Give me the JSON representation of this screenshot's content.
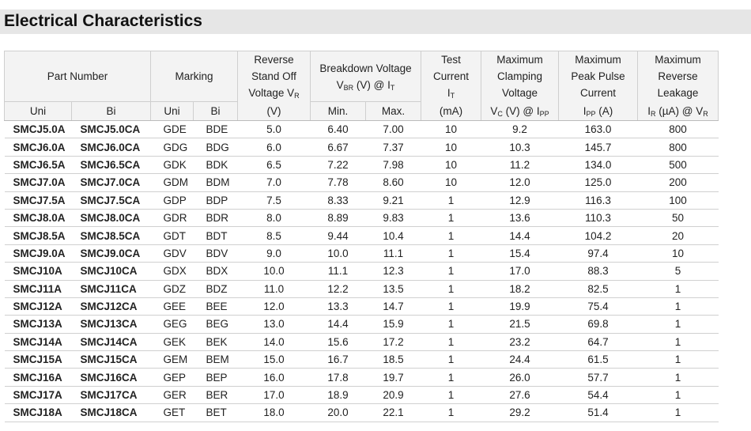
{
  "title": "Electrical Characteristics",
  "table": {
    "header": [
      {
        "lines": [
          [
            "Part Number"
          ]
        ]
      },
      {
        "lines": [
          [
            "Marking"
          ]
        ]
      },
      {
        "lines": [
          [
            "Reverse"
          ],
          [
            "Stand Off"
          ],
          [
            "Voltage V",
            {
              "sub": "R"
            }
          ]
        ]
      },
      {
        "lines": [
          [
            "Breakdown Voltage"
          ],
          [
            "V",
            {
              "sub": "BR"
            },
            " (V) @ I",
            {
              "sub": "T"
            }
          ]
        ]
      },
      {
        "lines": [
          [
            "Test"
          ],
          [
            "Current"
          ],
          [
            "I",
            {
              "sub": "T"
            }
          ]
        ]
      },
      {
        "lines": [
          [
            "Maximum"
          ],
          [
            "Clamping"
          ],
          [
            "Voltage"
          ]
        ]
      },
      {
        "lines": [
          [
            "Maximum"
          ],
          [
            "Peak Pulse"
          ],
          [
            "Current"
          ]
        ]
      },
      {
        "lines": [
          [
            "Maximum"
          ],
          [
            "Reverse"
          ],
          [
            "Leakage"
          ]
        ]
      }
    ],
    "subheader": [
      [
        "Uni"
      ],
      [
        "Bi"
      ],
      [
        "Uni"
      ],
      [
        "Bi"
      ],
      [
        "(V)"
      ],
      [
        "Min."
      ],
      [
        "Max."
      ],
      [
        "(mA)"
      ],
      [
        "V",
        {
          "sub": "C"
        },
        " (V) @ I",
        {
          "sub": "PP"
        }
      ],
      [
        "I",
        {
          "sub": "PP"
        },
        " (A)"
      ],
      [
        "I",
        {
          "sub": "R"
        },
        " (µA) @ V",
        {
          "sub": "R"
        }
      ]
    ],
    "rows": [
      [
        "SMCJ5.0A",
        "SMCJ5.0CA",
        "GDE",
        "BDE",
        "5.0",
        "6.40",
        "7.00",
        "10",
        "9.2",
        "163.0",
        "800"
      ],
      [
        "SMCJ6.0A",
        "SMCJ6.0CA",
        "GDG",
        "BDG",
        "6.0",
        "6.67",
        "7.37",
        "10",
        "10.3",
        "145.7",
        "800"
      ],
      [
        "SMCJ6.5A",
        "SMCJ6.5CA",
        "GDK",
        "BDK",
        "6.5",
        "7.22",
        "7.98",
        "10",
        "11.2",
        "134.0",
        "500"
      ],
      [
        "SMCJ7.0A",
        "SMCJ7.0CA",
        "GDM",
        "BDM",
        "7.0",
        "7.78",
        "8.60",
        "10",
        "12.0",
        "125.0",
        "200"
      ],
      [
        "SMCJ7.5A",
        "SMCJ7.5CA",
        "GDP",
        "BDP",
        "7.5",
        "8.33",
        "9.21",
        "1",
        "12.9",
        "116.3",
        "100"
      ],
      [
        "SMCJ8.0A",
        "SMCJ8.0CA",
        "GDR",
        "BDR",
        "8.0",
        "8.89",
        "9.83",
        "1",
        "13.6",
        "110.3",
        "50"
      ],
      [
        "SMCJ8.5A",
        "SMCJ8.5CA",
        "GDT",
        "BDT",
        "8.5",
        "9.44",
        "10.4",
        "1",
        "14.4",
        "104.2",
        "20"
      ],
      [
        "SMCJ9.0A",
        "SMCJ9.0CA",
        "GDV",
        "BDV",
        "9.0",
        "10.0",
        "11.1",
        "1",
        "15.4",
        "97.4",
        "10"
      ],
      [
        "SMCJ10A",
        "SMCJ10CA",
        "GDX",
        "BDX",
        "10.0",
        "11.1",
        "12.3",
        "1",
        "17.0",
        "88.3",
        "5"
      ],
      [
        "SMCJ11A",
        "SMCJ11CA",
        "GDZ",
        "BDZ",
        "11.0",
        "12.2",
        "13.5",
        "1",
        "18.2",
        "82.5",
        "1"
      ],
      [
        "SMCJ12A",
        "SMCJ12CA",
        "GEE",
        "BEE",
        "12.0",
        "13.3",
        "14.7",
        "1",
        "19.9",
        "75.4",
        "1"
      ],
      [
        "SMCJ13A",
        "SMCJ13CA",
        "GEG",
        "BEG",
        "13.0",
        "14.4",
        "15.9",
        "1",
        "21.5",
        "69.8",
        "1"
      ],
      [
        "SMCJ14A",
        "SMCJ14CA",
        "GEK",
        "BEK",
        "14.0",
        "15.6",
        "17.2",
        "1",
        "23.2",
        "64.7",
        "1"
      ],
      [
        "SMCJ15A",
        "SMCJ15CA",
        "GEM",
        "BEM",
        "15.0",
        "16.7",
        "18.5",
        "1",
        "24.4",
        "61.5",
        "1"
      ],
      [
        "SMCJ16A",
        "SMCJ16CA",
        "GEP",
        "BEP",
        "16.0",
        "17.8",
        "19.7",
        "1",
        "26.0",
        "57.7",
        "1"
      ],
      [
        "SMCJ17A",
        "SMCJ17CA",
        "GER",
        "BER",
        "17.0",
        "18.9",
        "20.9",
        "1",
        "27.6",
        "54.4",
        "1"
      ],
      [
        "SMCJ18A",
        "SMCJ18CA",
        "GET",
        "BET",
        "18.0",
        "20.0",
        "22.1",
        "1",
        "29.2",
        "51.4",
        "1"
      ]
    ]
  }
}
